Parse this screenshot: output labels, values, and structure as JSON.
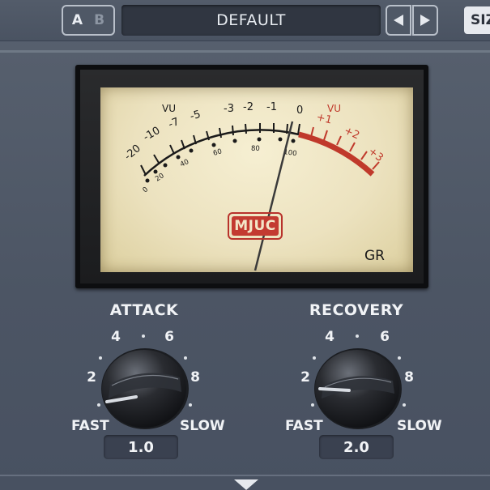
{
  "toolbar": {
    "ab_a": "A",
    "ab_b": "B",
    "preset_name": "DEFAULT",
    "size_label": "SIZ"
  },
  "meter": {
    "upper_scale": [
      "-20",
      "-10",
      "-7",
      "-5",
      "-3",
      "-2",
      "-1",
      "0",
      "+1",
      "+2",
      "+3"
    ],
    "lower_scale": [
      "0",
      "20",
      "40",
      "60",
      "80",
      "100"
    ],
    "vu_left": "VU",
    "vu_right": "VU",
    "brand": "MJUC",
    "gr_label": "GR",
    "colors": {
      "face": "#ece2bf",
      "red_zone": "#c0392b",
      "ink": "#1a1a1a"
    }
  },
  "attack": {
    "title": "ATTACK",
    "scale": [
      "2",
      "4",
      "6",
      "8"
    ],
    "fast_label": "FAST",
    "slow_label": "SLOW",
    "value": "1.0"
  },
  "recovery": {
    "title": "RECOVERY",
    "scale": [
      "2",
      "4",
      "6",
      "8"
    ],
    "fast_label": "FAST",
    "slow_label": "SLOW",
    "value": "2.0"
  }
}
